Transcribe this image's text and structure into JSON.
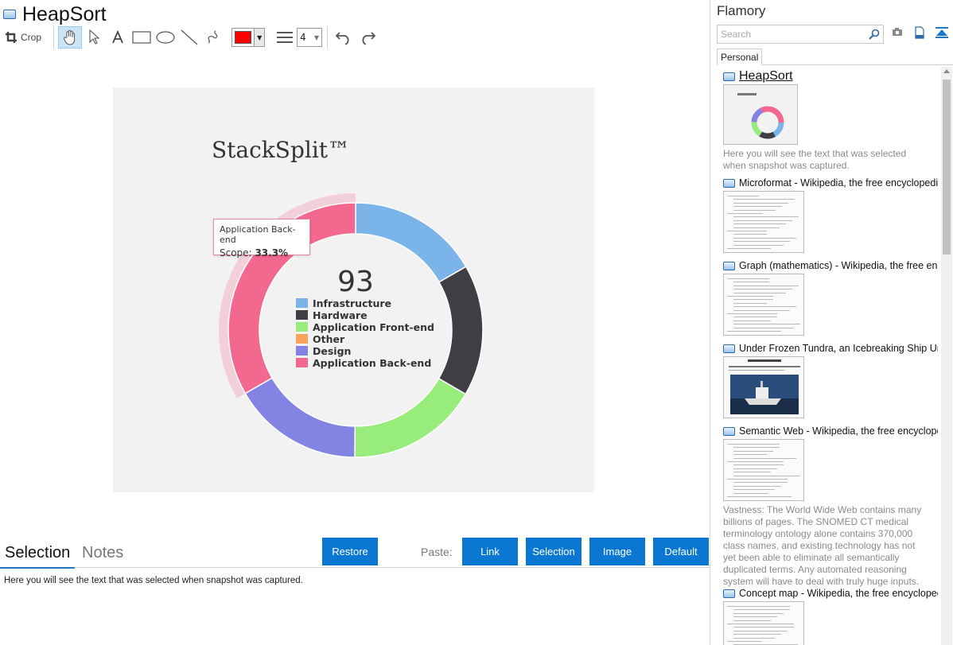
{
  "window": {
    "title": "HeapSort"
  },
  "toolbar": {
    "crop_label": "Crop",
    "line_width": "4",
    "color": "#ff0000"
  },
  "chart_data": {
    "type": "pie",
    "title": "StackSplit™",
    "center_value": "93",
    "categories": [
      "Infrastructure",
      "Hardware",
      "Application Front-end",
      "Other",
      "Design",
      "Application Back-end"
    ],
    "values": [
      16.7,
      16.7,
      16.7,
      0,
      16.6,
      33.3
    ],
    "colors": [
      "#7ab4e8",
      "#3f3e45",
      "#98ec7c",
      "#f7a35c",
      "#8283e3",
      "#f3688e"
    ],
    "tooltip": {
      "series": "Application Back-end",
      "label": "Scope:",
      "value": "33.3%"
    }
  },
  "bottom": {
    "tabs": [
      "Selection",
      "Notes"
    ],
    "restore_label": "Restore",
    "paste_label": "Paste:",
    "paste_buttons": [
      "Link",
      "Selection",
      "Image",
      "Default"
    ],
    "selection_text": "Here you will see the text that was selected when snapshot was captured."
  },
  "sidebar": {
    "title": "Flamory",
    "search_placeholder": "Search",
    "tab": "Personal",
    "items": [
      {
        "title": "HeapSort",
        "desc": "Here you will see the text that was selected when snapshot was captured."
      },
      {
        "title": "Microformat - Wikipedia, the free encyclopedia",
        "desc": ""
      },
      {
        "title": "Graph (mathematics) - Wikipedia, the free ency",
        "desc": ""
      },
      {
        "title": "Under Frozen Tundra, an Icebreaking Ship Unco",
        "desc": ""
      },
      {
        "title": "Semantic Web - Wikipedia, the free encycloped",
        "desc": "Vastness: The World Wide Web contains many billions of pages. The SNOMED CT medical terminology ontology alone contains 370,000 class names, and existing technology has not yet been able to eliminate all semantically duplicated terms. Any automated reasoning system will have to deal with truly huge inputs."
      },
      {
        "title": "Concept map - Wikipedia, the free encyclopedia",
        "desc": ""
      }
    ]
  }
}
